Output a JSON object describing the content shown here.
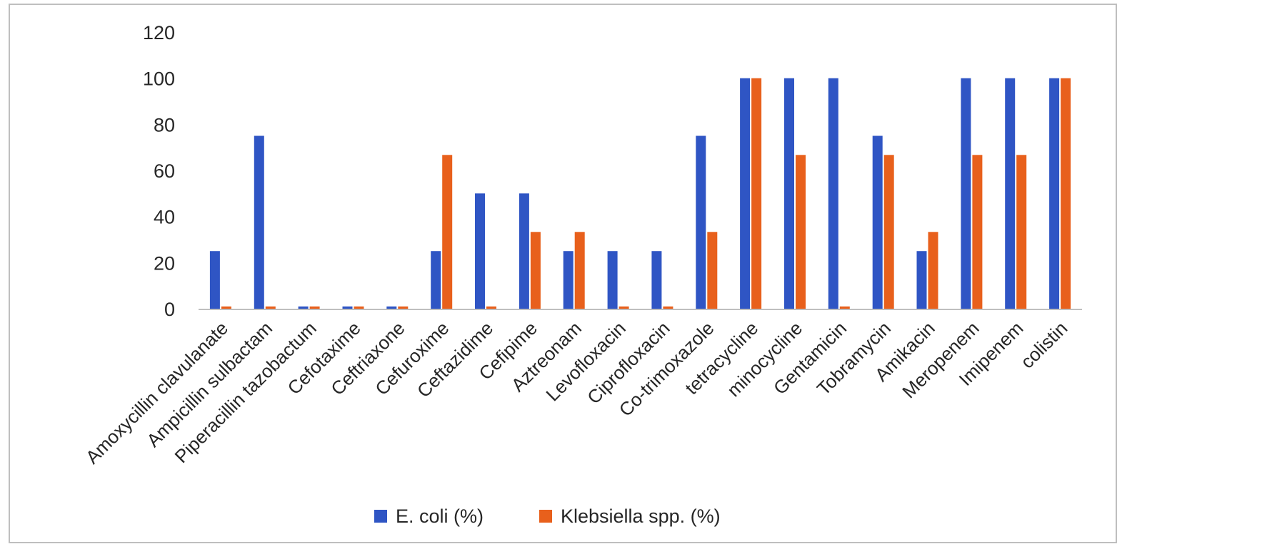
{
  "chart_data": {
    "type": "bar",
    "title": "",
    "xlabel": "",
    "ylabel": "",
    "ylim": [
      0,
      120
    ],
    "yticks": [
      0,
      20,
      40,
      60,
      80,
      100,
      120
    ],
    "grid": false,
    "legend_position": "bottom",
    "categories": [
      "Amoxycillin clavulanate",
      "Ampicillin sulbactam",
      "Piperacillin tazobactum",
      "Cefotaxime",
      "Ceftriaxone",
      "Cefuroxime",
      "Ceftazidime",
      "Cefipime",
      "Aztreonam",
      "Levofloxacin",
      "Ciprofloxacin",
      "Co-trimoxazole",
      "tetracycline",
      "minocycline",
      "Gentamicin",
      "Tobramycin",
      "Amikacin",
      "Meropenem",
      "Imipenem",
      "colistin"
    ],
    "series": [
      {
        "name": "E. coli (%)",
        "color": "#2f55c4",
        "values": [
          25,
          75,
          1,
          1,
          1,
          25,
          50,
          50,
          25,
          25,
          25,
          75,
          100,
          100,
          100,
          75,
          25,
          100,
          100,
          100
        ]
      },
      {
        "name": "Klebsiella spp. (%)",
        "color": "#e8601c",
        "values": [
          1,
          1,
          1,
          1,
          1,
          66.7,
          1,
          33.3,
          33.3,
          1,
          1,
          33.3,
          100,
          66.7,
          1,
          66.7,
          33.3,
          66.7,
          66.7,
          100
        ]
      }
    ]
  }
}
